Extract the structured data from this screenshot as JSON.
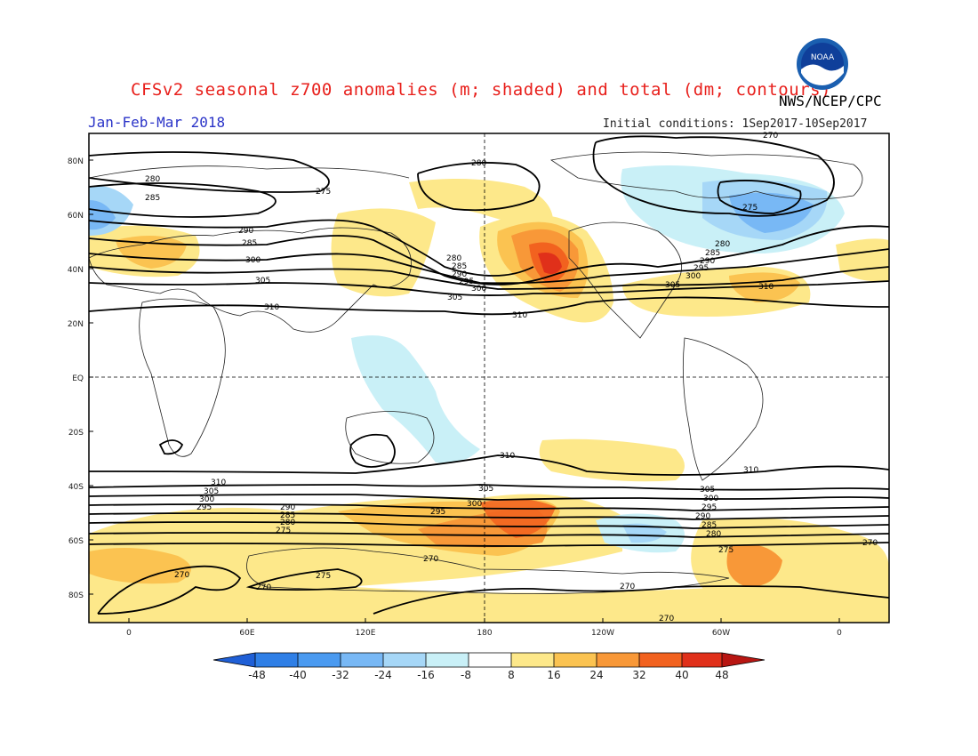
{
  "header": {
    "title": "CFSv2 seasonal z700 anomalies (m; shaded) and total (dm; contours)",
    "agency": "NWS/NCEP/CPC",
    "season": "Jan-Feb-Mar 2018",
    "initial_conditions": "Initial conditions: 1Sep2017-10Sep2017",
    "logo_text": "NOAA"
  },
  "map": {
    "lat_ticks": [
      "80N",
      "60N",
      "40N",
      "20N",
      "EQ",
      "20S",
      "40S",
      "60S",
      "80S"
    ],
    "lon_ticks": [
      "0",
      "60E",
      "120E",
      "180",
      "120W",
      "60W",
      "0"
    ],
    "contour_labels": [
      "270",
      "275",
      "280",
      "285",
      "290",
      "295",
      "300",
      "305",
      "310"
    ]
  },
  "colorbar": {
    "labels": [
      "-48",
      "-40",
      "-32",
      "-24",
      "-16",
      "-8",
      "8",
      "16",
      "24",
      "32",
      "40",
      "48"
    ],
    "colors": [
      "#1f5fd6",
      "#2f7fe6",
      "#4a9af0",
      "#78b8f5",
      "#a6d7f7",
      "#c9f0f7",
      "#ffffff",
      "#fde88a",
      "#fbc351",
      "#f89838",
      "#f2621f",
      "#e0301a",
      "#b81612"
    ]
  }
}
